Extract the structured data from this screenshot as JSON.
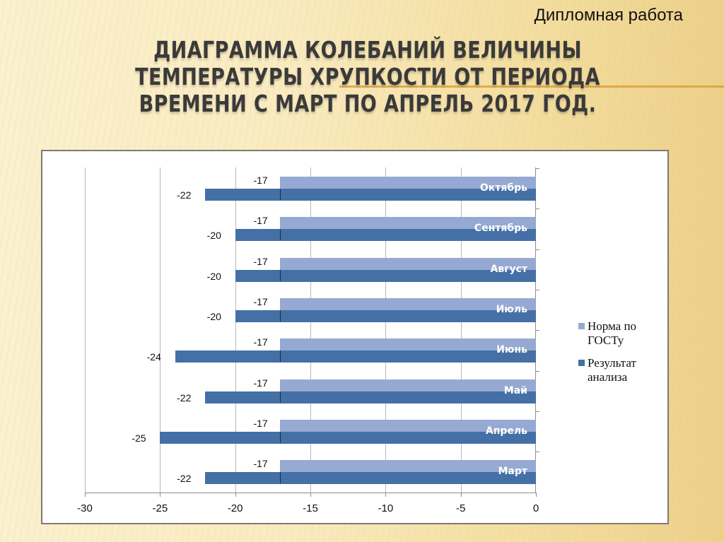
{
  "slide": {
    "subtitle": "Дипломная работа",
    "title": "Диаграмма колебаний величины температуры хрупкости от периода времени с март по апрель 2017 год."
  },
  "colors": {
    "norm": "#95a9d2",
    "result": "#4470a6",
    "background": "#f7e7b6",
    "accent_rule": "#d99a2b"
  },
  "legend": [
    {
      "label_line1": "Норма по",
      "label_line2": "ГОСТу",
      "color": "#95a9d2"
    },
    {
      "label_line1": "Результат",
      "label_line2": "анализа",
      "color": "#4470a6"
    }
  ],
  "chart_data": {
    "type": "bar",
    "orientation": "horizontal",
    "title": "Диаграмма колебаний величины температуры хрупкости от периода времени с март по апрель 2017 год.",
    "categories": [
      "Октябрь",
      "Сентябрь",
      "Август",
      "Июль",
      "Июнь",
      "Май",
      "Апрель",
      "Март"
    ],
    "series": [
      {
        "name": "Норма по ГОСТу",
        "values": [
          -17,
          -17,
          -17,
          -17,
          -17,
          -17,
          -17,
          -17
        ]
      },
      {
        "name": "Результат анализа",
        "values": [
          -22,
          -20,
          -20,
          -20,
          -24,
          -22,
          -25,
          -22
        ]
      }
    ],
    "xlabel": "",
    "ylabel": "",
    "xlim": [
      -30,
      0
    ],
    "x_ticks": [
      "-30",
      "-25",
      "-20",
      "-15",
      "-10",
      "-5",
      "0"
    ],
    "grid": "vertical",
    "legend_position": "right",
    "data_labels": true
  }
}
